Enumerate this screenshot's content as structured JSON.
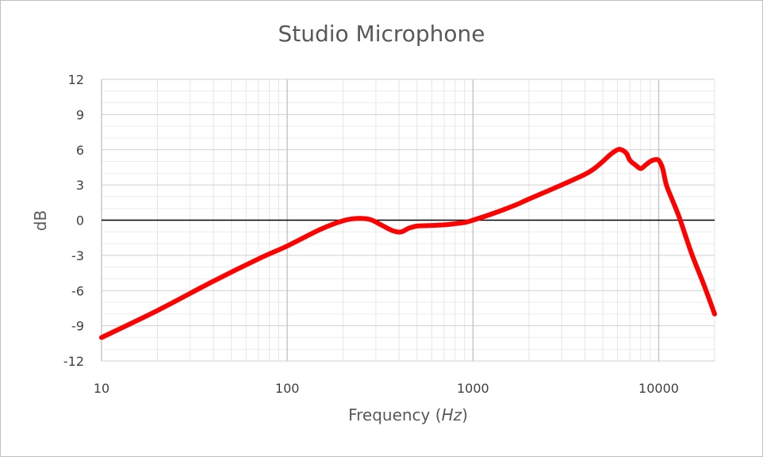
{
  "chart_data": {
    "type": "line",
    "title": "Studio Microphone",
    "xlabel": "Frequency",
    "xlabel_unit": "Hz",
    "ylabel": "dB",
    "x_scale": "log",
    "xlim": [
      10,
      20000
    ],
    "ylim": [
      -12,
      12
    ],
    "x_ticks": [
      10,
      100,
      1000,
      10000
    ],
    "x_tick_labels": [
      "10",
      "100",
      "1000",
      "10000"
    ],
    "y_ticks": [
      12,
      9,
      6,
      3,
      0,
      -3,
      -6,
      -9,
      -12
    ],
    "y_tick_labels": [
      "12",
      "9",
      "6",
      "3",
      "0",
      "-3",
      "-6",
      "-9",
      "-12"
    ],
    "grid": true,
    "line_color": "#ff0000",
    "zero_line_color": "#000000",
    "series": [
      {
        "x": [
          10,
          20,
          40,
          70,
          100,
          150,
          200,
          240,
          280,
          320,
          370,
          410,
          450,
          500,
          600,
          700,
          800,
          900,
          1000,
          1300,
          1700,
          2000,
          3000,
          4000,
          4500,
          5000,
          5500,
          6000,
          6300,
          6700,
          7000,
          7500,
          8000,
          8500,
          9000,
          9500,
          10000,
          10500,
          11000,
          12000,
          13000,
          15000,
          17500,
          20000
        ],
        "y": [
          -10,
          -7.7,
          -5.2,
          -3.3,
          -2.2,
          -0.8,
          -0.05,
          0.15,
          0.05,
          -0.4,
          -0.9,
          -1.0,
          -0.7,
          -0.5,
          -0.45,
          -0.4,
          -0.3,
          -0.2,
          0.0,
          0.6,
          1.3,
          1.8,
          3.0,
          3.9,
          4.4,
          5.0,
          5.6,
          6.0,
          6.0,
          5.7,
          5.1,
          4.7,
          4.4,
          4.7,
          5.0,
          5.15,
          5.1,
          4.4,
          3.0,
          1.5,
          0.1,
          -2.8,
          -5.5,
          -8.0
        ]
      }
    ]
  }
}
